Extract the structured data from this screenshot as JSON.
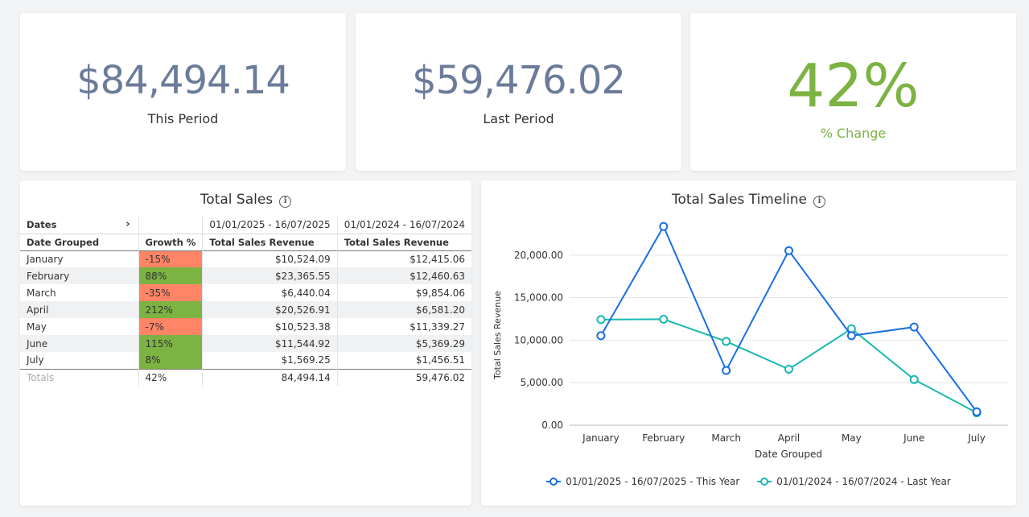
{
  "kpis": [
    {
      "value": "$84,494.14",
      "label": "This Period"
    },
    {
      "value": "$59,476.02",
      "label": "Last Period"
    },
    {
      "value": "42%",
      "label": "% Change"
    }
  ],
  "colors": {
    "kpi_value": "#6b7b9a",
    "positive": "#7cb342",
    "negative": "#ff8566",
    "series_this_year": "#1a6fe0",
    "series_last_year": "#1ab8b0"
  },
  "icons": {
    "info": "info-icon",
    "expand": "chevron-right-icon"
  },
  "table": {
    "title": "Total Sales",
    "dates_label": "Dates",
    "period_this": "01/01/2025 - 16/07/2025",
    "period_last": "01/01/2024 - 16/07/2024",
    "columns": [
      "Date Grouped",
      "Growth %",
      "Total Sales Revenue",
      "Total Sales Revenue"
    ],
    "rows": [
      {
        "month": "January",
        "growth": "-15%",
        "this": "$10,524.09",
        "last": "$12,415.06"
      },
      {
        "month": "February",
        "growth": "88%",
        "this": "$23,365.55",
        "last": "$12,460.63"
      },
      {
        "month": "March",
        "growth": "-35%",
        "this": "$6,440.04",
        "last": "$9,854.06"
      },
      {
        "month": "April",
        "growth": "212%",
        "this": "$20,526.91",
        "last": "$6,581.20"
      },
      {
        "month": "May",
        "growth": "-7%",
        "this": "$10,523.38",
        "last": "$11,339.27"
      },
      {
        "month": "June",
        "growth": "115%",
        "this": "$11,544.92",
        "last": "$5,369.29"
      },
      {
        "month": "July",
        "growth": "8%",
        "this": "$1,569.25",
        "last": "$1,456.51"
      }
    ],
    "totals": {
      "label": "Totals",
      "growth": "42%",
      "this": "84,494.14",
      "last": "59,476.02"
    }
  },
  "chart_data": {
    "type": "line",
    "title": "Total Sales Timeline",
    "xlabel": "Date Grouped",
    "ylabel": "Total Sales Revenue",
    "categories": [
      "January",
      "February",
      "March",
      "April",
      "May",
      "June",
      "July"
    ],
    "yticks": [
      "0.00",
      "5,000.00",
      "10,000.00",
      "15,000.00",
      "20,000.00"
    ],
    "ylim": [
      0,
      25000
    ],
    "grid": true,
    "legend_position": "bottom",
    "series": [
      {
        "name": "01/01/2025 - 16/07/2025 - This Year",
        "color": "#1a6fe0",
        "values": [
          10524.09,
          23365.55,
          6440.04,
          20526.91,
          10523.38,
          11544.92,
          1569.25
        ]
      },
      {
        "name": "01/01/2024 - 16/07/2024 - Last Year",
        "color": "#1ab8b0",
        "values": [
          12415.06,
          12460.63,
          9854.06,
          6581.2,
          11339.27,
          5369.29,
          1456.51
        ]
      }
    ]
  }
}
